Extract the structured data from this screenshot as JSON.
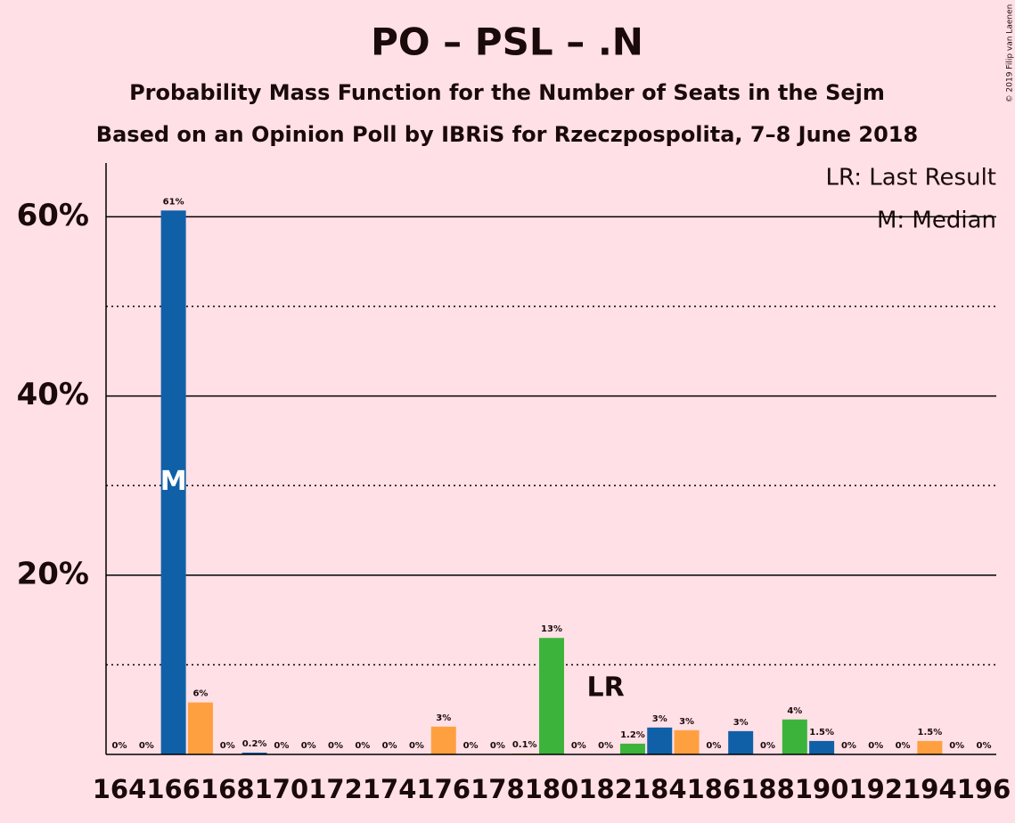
{
  "chart_data": {
    "type": "bar",
    "title": "PO – PSL – .N",
    "subtitle": "Probability Mass Function for the Number of Seats in the Sejm",
    "subtitle2": "Based on an Opinion Poll by IBRiS for Rzeczpospolita, 7–8 June 2018",
    "copyright": "© 2019 Filip van Laenen",
    "categories": [
      "164",
      null,
      "166",
      null,
      "168",
      null,
      "170",
      null,
      "172",
      null,
      "174",
      null,
      "176",
      null,
      "178",
      null,
      "180",
      null,
      "182",
      null,
      "184",
      null,
      "186",
      null,
      "188",
      null,
      "190",
      null,
      "192",
      null,
      "194",
      null,
      "196"
    ],
    "values": [
      0,
      0,
      60.7,
      5.8,
      0,
      0.2,
      0,
      0,
      0,
      0,
      0,
      0,
      3.1,
      0,
      0,
      0.1,
      13,
      0,
      0,
      1.2,
      3,
      2.7,
      0,
      2.6,
      0,
      3.9,
      1.5,
      0,
      0,
      0,
      1.5,
      0,
      0
    ],
    "value_labels": [
      "0%",
      "0%",
      "61%",
      "6%",
      "0%",
      "0.2%",
      "0%",
      "0%",
      "0%",
      "0%",
      "0%",
      "0%",
      "3%",
      "0%",
      "0%",
      "0.1%",
      "13%",
      "0%",
      "0%",
      "1.2%",
      "3%",
      "3%",
      "0%",
      "3%",
      "0%",
      "4%",
      "1.5%",
      "0%",
      "0%",
      "0%",
      "1.5%",
      "0%",
      "0%"
    ],
    "colors": [
      "#ffa040",
      "#3cb43c",
      "#1060a8",
      "#ffa040",
      "#3cb43c",
      "#1060a8",
      "#ffa040",
      "#3cb43c",
      "#1060a8",
      "#ffa040",
      "#3cb43c",
      "#1060a8",
      "#ffa040",
      "#3cb43c",
      "#1060a8",
      "#ffa040",
      "#3cb43c",
      "#1060a8",
      "#ffa040",
      "#3cb43c",
      "#1060a8",
      "#ffa040",
      "#3cb43c",
      "#1060a8",
      "#ffa040",
      "#3cb43c",
      "#1060a8",
      "#ffa040",
      "#3cb43c",
      "#1060a8",
      "#ffa040",
      "#3cb43c",
      "#1060a8"
    ],
    "ylim": [
      0,
      66
    ],
    "yticks": [
      {
        "value": 20,
        "label": "20%"
      },
      {
        "value": 40,
        "label": "40%"
      },
      {
        "value": 60,
        "label": "60%"
      }
    ],
    "minor_yticks": [
      10,
      30,
      50
    ],
    "last_result": {
      "label": "LR",
      "x": "182"
    },
    "median": {
      "label": "M",
      "x": "166"
    },
    "legend": [
      "LR: Last Result",
      "M: Median"
    ]
  }
}
